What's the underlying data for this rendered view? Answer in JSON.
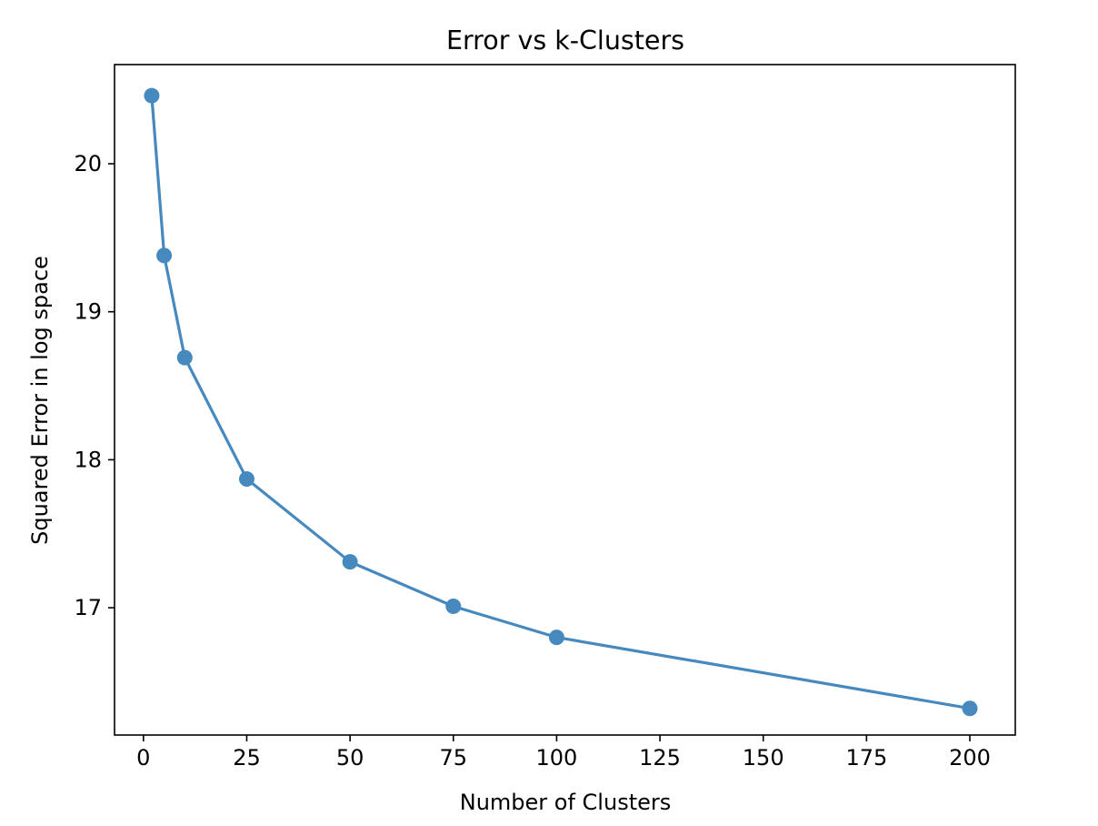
{
  "chart_data": {
    "type": "line",
    "title": "Error vs k-Clusters",
    "xlabel": "Number of Clusters",
    "ylabel": "Squared Error in log space",
    "x": [
      2,
      5,
      10,
      25,
      50,
      75,
      100,
      200
    ],
    "series": [
      {
        "values": [
          20.46,
          19.38,
          18.69,
          17.87,
          17.31,
          17.01,
          16.8,
          16.32
        ],
        "color": "#4689bf",
        "marker": "circle"
      }
    ],
    "xlim": [
      -7,
      211
    ],
    "ylim": [
      16.14,
      20.67
    ],
    "xticks": [
      0,
      25,
      50,
      75,
      100,
      125,
      150,
      175,
      200
    ],
    "yticks": [
      17,
      18,
      19,
      20
    ],
    "grid": false,
    "legend": "none"
  }
}
